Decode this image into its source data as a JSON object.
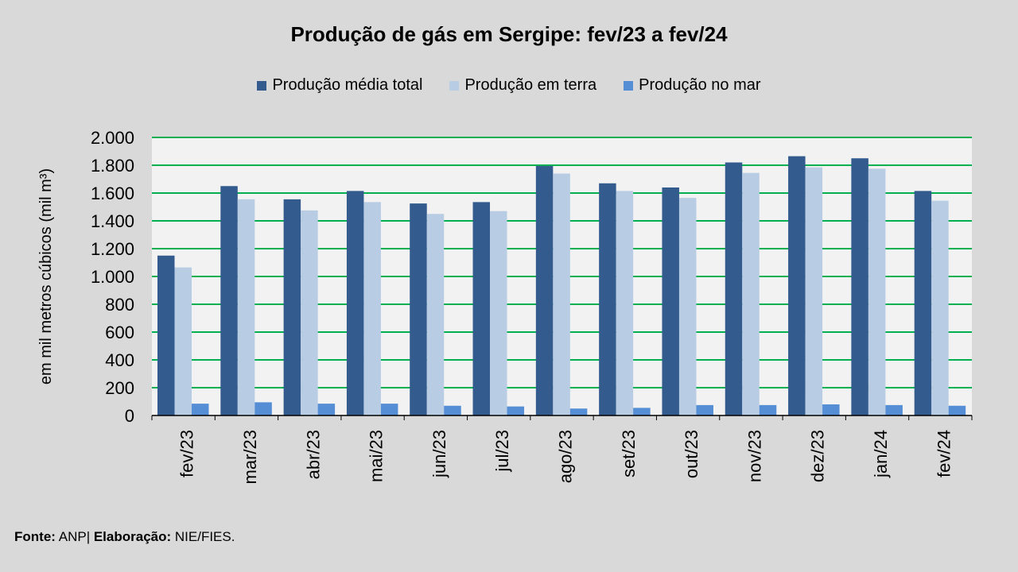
{
  "chart_data": {
    "type": "bar",
    "title": "Produção de gás em Sergipe: fev/23 a fev/24",
    "ylabel": "em mil metros cúbicos (mil m³)",
    "xlabel": "",
    "ylim": [
      0,
      2000
    ],
    "yticks": [
      0,
      200,
      400,
      600,
      800,
      1000,
      1200,
      1400,
      1600,
      1800,
      2000
    ],
    "ytick_labels": [
      "0",
      "200",
      "400",
      "600",
      "800",
      "1.000",
      "1.200",
      "1.400",
      "1.600",
      "1.800",
      "2.000"
    ],
    "grid": true,
    "legend_position": "top",
    "categories": [
      "fev/23",
      "mar/23",
      "abr/23",
      "mai/23",
      "jun/23",
      "jul/23",
      "ago/23",
      "set/23",
      "out/23",
      "nov/23",
      "dez/23",
      "jan/24",
      "fev/24"
    ],
    "series": [
      {
        "name": "Produção média total",
        "color": "#335b8e",
        "values": [
          1150,
          1650,
          1555,
          1615,
          1525,
          1535,
          1795,
          1670,
          1640,
          1820,
          1865,
          1850,
          1615
        ]
      },
      {
        "name": "Produção em terra",
        "color": "#b8cce4",
        "values": [
          1065,
          1555,
          1475,
          1535,
          1450,
          1470,
          1740,
          1615,
          1565,
          1745,
          1785,
          1775,
          1545
        ]
      },
      {
        "name": "Produção no mar",
        "color": "#558ed5",
        "values": [
          85,
          95,
          85,
          85,
          70,
          65,
          50,
          55,
          75,
          75,
          80,
          75,
          70
        ]
      }
    ]
  },
  "colors": {
    "background": "#d9d9d9",
    "plot_background": "#f2f2f2",
    "gridline": "#00b050"
  },
  "footer": {
    "source_label": "Fonte:",
    "source_value": "ANP|",
    "credit_label": "Elaboração:",
    "credit_value": "NIE/FIES."
  }
}
